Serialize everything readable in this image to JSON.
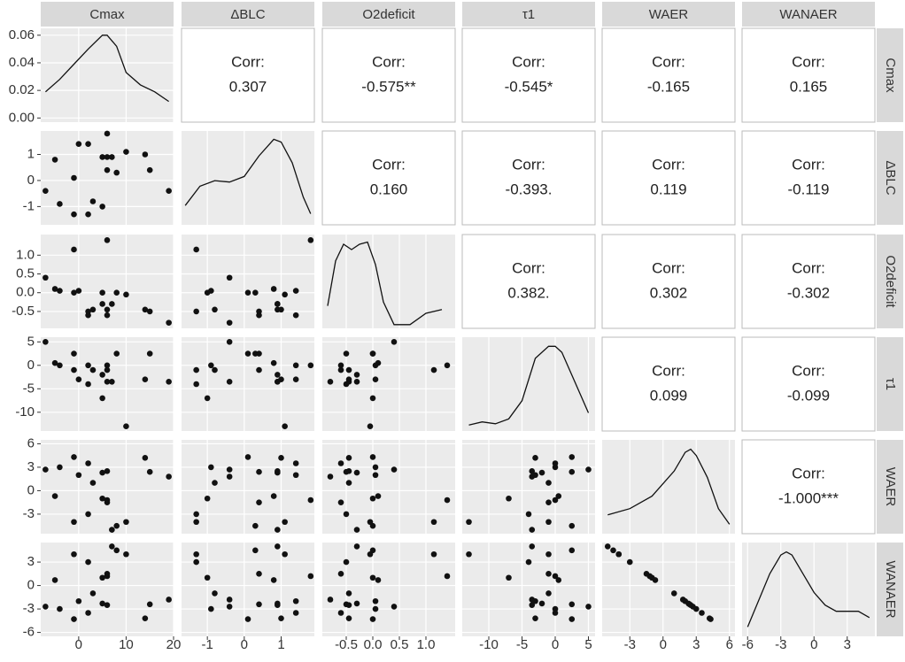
{
  "chart_data": {
    "type": "pairs",
    "corr_title": "Corr:",
    "variables": [
      {
        "name": "Cmax",
        "values": [
          -7,
          -5,
          -4,
          -1,
          -1,
          0,
          2,
          2,
          3,
          5,
          5,
          6,
          6,
          6,
          7,
          8,
          10,
          14,
          15,
          19
        ],
        "lim": [
          -8,
          20
        ],
        "ticks": [
          0,
          10,
          20
        ],
        "density": {
          "x": [
            -7,
            -4,
            -1,
            2,
            5,
            6,
            8,
            10,
            13,
            16,
            19
          ],
          "y": [
            0.019,
            0.028,
            0.039,
            0.05,
            0.06,
            0.06,
            0.052,
            0.033,
            0.024,
            0.019,
            0.012
          ],
          "ylim": [
            -0.003,
            0.065
          ],
          "yticks": [
            {
              "value": 0,
              "label": "0.00"
            },
            {
              "value": 0.02,
              "label": "0.02"
            },
            {
              "value": 0.04,
              "label": "0.04"
            },
            {
              "value": 0.06,
              "label": "0.06"
            }
          ]
        }
      },
      {
        "name": "ΔBLC",
        "values": [
          -0.4,
          0.8,
          -0.9,
          -1.3,
          0.1,
          1.4,
          1.4,
          -1.3,
          -0.8,
          0.9,
          -1.0,
          1.8,
          0.9,
          0.4,
          0.9,
          0.3,
          1.1,
          1.0,
          0.4,
          -0.4
        ],
        "lim": [
          -1.7,
          1.9
        ],
        "ticks": [
          -1,
          0,
          1
        ],
        "density": {
          "x": [
            -1.6,
            -1.2,
            -0.8,
            -0.4,
            0,
            0.4,
            0.8,
            1.0,
            1.3,
            1.6,
            1.8
          ],
          "y": [
            0.14,
            0.28,
            0.32,
            0.31,
            0.35,
            0.5,
            0.62,
            0.6,
            0.45,
            0.2,
            0.08
          ],
          "ylim": [
            0,
            0.68
          ]
        }
      },
      {
        "name": "O2deficit",
        "values": [
          0.4,
          0.1,
          0.05,
          1.15,
          0,
          0.05,
          -0.6,
          -0.5,
          -0.45,
          -0.3,
          0,
          1.4,
          -0.45,
          -0.6,
          -0.3,
          0,
          -0.05,
          -0.45,
          -0.5,
          -0.8
        ],
        "lim": [
          -0.95,
          1.55
        ],
        "ticks": [
          -0.5,
          {
            "value": 0,
            "label": "0.0"
          },
          0.5,
          {
            "value": 1,
            "label": "1.0"
          }
        ],
        "density": {
          "x": [
            -0.85,
            -0.7,
            -0.55,
            -0.4,
            -0.25,
            -0.1,
            0.05,
            0.2,
            0.4,
            0.7,
            1.0,
            1.3
          ],
          "y": [
            0.3,
            0.9,
            1.12,
            1.05,
            1.12,
            1.15,
            0.85,
            0.35,
            0.05,
            0.05,
            0.2,
            0.25
          ],
          "ylim": [
            0,
            1.25
          ]
        }
      },
      {
        "name": "τ1",
        "values": [
          5,
          0.5,
          0,
          -1,
          2.5,
          -3,
          0,
          -4,
          -1,
          -2,
          -7,
          0,
          -3.5,
          -1,
          -3.5,
          2.5,
          -13,
          -3,
          2.5,
          -3.5
        ],
        "lim": [
          -14,
          6
        ],
        "ticks": [
          -10,
          -5,
          0,
          5
        ],
        "density": {
          "x": [
            -13,
            -11,
            -9,
            -7,
            -5,
            -3,
            -1,
            0,
            1,
            3,
            5
          ],
          "y": [
            0.01,
            0.015,
            0.012,
            0.02,
            0.05,
            0.12,
            0.14,
            0.14,
            0.13,
            0.08,
            0.03
          ],
          "ylim": [
            0,
            0.155
          ]
        }
      },
      {
        "name": "WAER",
        "values": [
          2.7,
          -0.7,
          3.0,
          -4.0,
          4.3,
          2.0,
          3.5,
          -3.0,
          1.0,
          2.3,
          -1.0,
          -1.2,
          2.5,
          -1.5,
          -5.0,
          -4.5,
          -4.0,
          4.2,
          2.4,
          1.8
        ],
        "lim": [
          -5.5,
          6.5
        ],
        "ticks": [
          -3,
          0,
          3,
          6
        ],
        "density": {
          "x": [
            -5,
            -3,
            -1,
            1,
            2,
            2.5,
            3,
            4,
            5,
            6
          ],
          "y": [
            0.03,
            0.04,
            0.06,
            0.1,
            0.13,
            0.135,
            0.125,
            0.09,
            0.04,
            0.015
          ],
          "ylim": [
            0,
            0.15
          ]
        }
      },
      {
        "name": "WANAER",
        "values": [
          -2.7,
          0.7,
          -3.0,
          4.0,
          -4.3,
          -2.0,
          -3.5,
          3.0,
          -1.0,
          -2.3,
          1.0,
          1.2,
          -2.5,
          1.5,
          5.0,
          4.5,
          4.0,
          -4.2,
          -2.4,
          -1.8
        ],
        "lim": [
          -6.5,
          5.5
        ],
        "ticks": [
          -6,
          -3,
          0,
          3
        ],
        "density": {
          "x": [
            -6,
            -4,
            -3,
            -2.5,
            -2,
            -1,
            0,
            1,
            2,
            3,
            4,
            5
          ],
          "y": [
            0.015,
            0.1,
            0.13,
            0.135,
            0.13,
            0.1,
            0.07,
            0.05,
            0.04,
            0.04,
            0.04,
            0.03
          ],
          "ylim": [
            0,
            0.15
          ]
        }
      }
    ],
    "correlations": [
      [
        0.307,
        -0.575,
        -0.545,
        -0.165,
        0.165
      ],
      [
        0.16,
        -0.393,
        0.119,
        -0.119
      ],
      [
        0.382,
        0.302,
        -0.302
      ],
      [
        0.099,
        -0.099
      ],
      [
        -1.0
      ]
    ],
    "correlation_labels": [
      [
        "0.307",
        "-0.575**",
        "-0.545*",
        "-0.165",
        "0.165"
      ],
      [
        "0.160",
        "-0.393.",
        "0.119",
        "-0.119"
      ],
      [
        "0.382.",
        "0.302",
        "-0.302"
      ],
      [
        "0.099",
        "-0.099"
      ],
      [
        "-1.000***"
      ]
    ]
  }
}
